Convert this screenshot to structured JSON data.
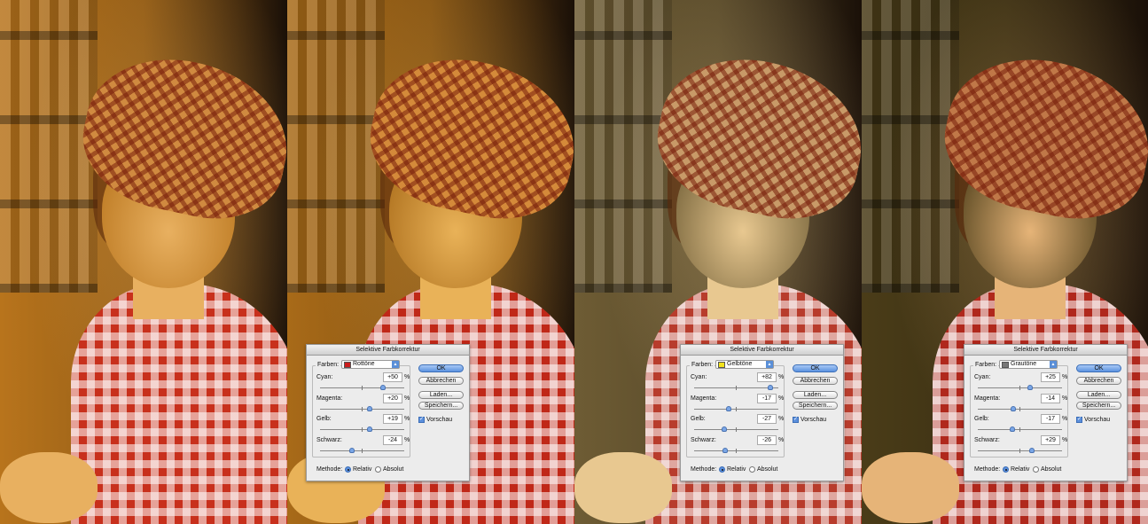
{
  "panels": [
    {
      "tone_bg": "#b8741c",
      "tone_face": "#e8b060",
      "tone_shirt": "#c8301c",
      "tone_hat": "#d08a40"
    },
    {
      "tone_bg": "#a86a18",
      "tone_face": "#e9b258",
      "tone_shirt": "#c02818",
      "tone_hat": "#d48a3a"
    },
    {
      "tone_bg": "#6e5c34",
      "tone_face": "#e8c890",
      "tone_shirt": "#b83c2c",
      "tone_hat": "#c89a68"
    },
    {
      "tone_bg": "#4a3c18",
      "tone_face": "#e6b478",
      "tone_shirt": "#b0281c",
      "tone_hat": "#c07848"
    }
  ],
  "dialogs": [
    {
      "title": "Selektive Farbkorrektur",
      "farben_label": "Farben:",
      "farben_value": "Rottöne",
      "swatch_color": "#cc1c1c",
      "sliders": [
        {
          "label": "Cyan:",
          "value": "+50",
          "percent": "%"
        },
        {
          "label": "Magenta:",
          "value": "+20",
          "percent": "%"
        },
        {
          "label": "Gelb:",
          "value": "+19",
          "percent": "%"
        },
        {
          "label": "Schwarz:",
          "value": "-24",
          "percent": "%"
        }
      ],
      "buttons": {
        "ok": "OK",
        "cancel": "Abbrechen",
        "load": "Laden...",
        "save": "Speichern..."
      },
      "preview_label": "Vorschau",
      "preview_checked": true,
      "methode_label": "Methode:",
      "radio_relativ": "Relativ",
      "radio_absolut": "Absolut",
      "selected_method": "Relativ"
    },
    {
      "title": "Selektive Farbkorrektur",
      "farben_label": "Farben:",
      "farben_value": "Gelbtöne",
      "swatch_color": "#f2e21c",
      "sliders": [
        {
          "label": "Cyan:",
          "value": "+82",
          "percent": "%"
        },
        {
          "label": "Magenta:",
          "value": "-17",
          "percent": "%"
        },
        {
          "label": "Gelb:",
          "value": "-27",
          "percent": "%"
        },
        {
          "label": "Schwarz:",
          "value": "-26",
          "percent": "%"
        }
      ],
      "buttons": {
        "ok": "OK",
        "cancel": "Abbrechen",
        "load": "Laden...",
        "save": "Speichern..."
      },
      "preview_label": "Vorschau",
      "preview_checked": true,
      "methode_label": "Methode:",
      "radio_relativ": "Relativ",
      "radio_absolut": "Absolut",
      "selected_method": "Relativ"
    },
    {
      "title": "Selektive Farbkorrektur",
      "farben_label": "Farben:",
      "farben_value": "Grautöne",
      "swatch_color": "#777777",
      "sliders": [
        {
          "label": "Cyan:",
          "value": "+25",
          "percent": "%"
        },
        {
          "label": "Magenta:",
          "value": "-14",
          "percent": "%"
        },
        {
          "label": "Gelb:",
          "value": "-17",
          "percent": "%"
        },
        {
          "label": "Schwarz:",
          "value": "+29",
          "percent": "%"
        }
      ],
      "buttons": {
        "ok": "OK",
        "cancel": "Abbrechen",
        "load": "Laden...",
        "save": "Speichern..."
      },
      "preview_label": "Vorschau",
      "preview_checked": true,
      "methode_label": "Methode:",
      "radio_relativ": "Relativ",
      "radio_absolut": "Absolut",
      "selected_method": "Relativ"
    }
  ]
}
